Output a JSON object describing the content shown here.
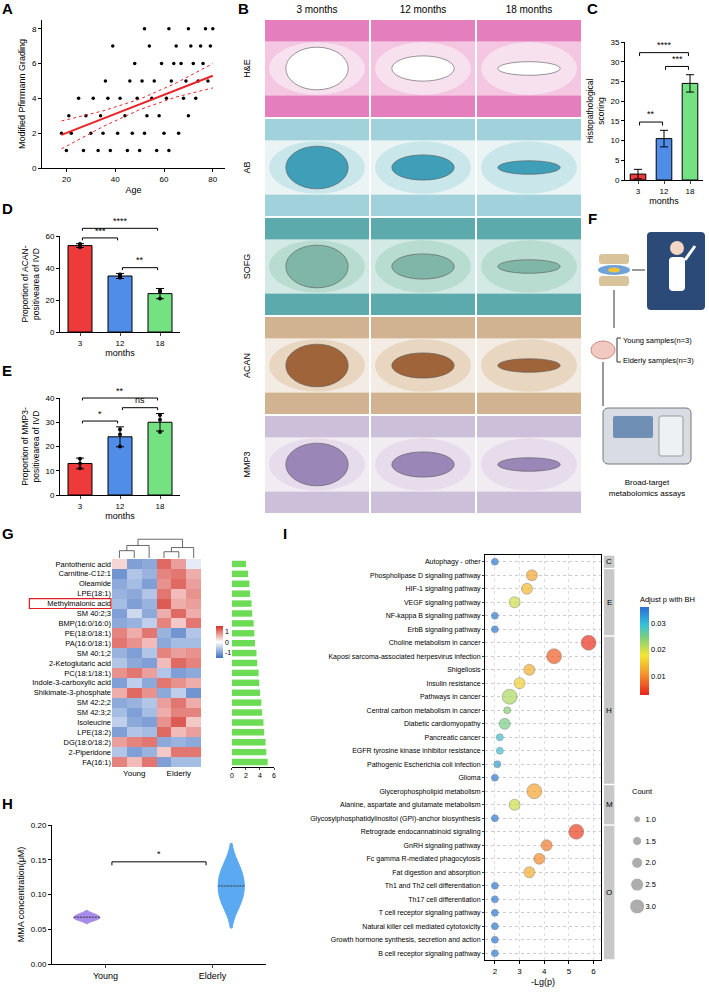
{
  "chart_data": [
    {
      "panel": "A",
      "type": "scatter",
      "x_label": "Age",
      "y_label": "Modified Pfirrmann Grading",
      "xlim": [
        10,
        85
      ],
      "xticks": [
        20,
        40,
        60,
        80
      ],
      "ylim": [
        0,
        8.5
      ],
      "yticks": [
        0,
        2,
        4,
        6,
        8
      ],
      "grid": false,
      "series": [
        {
          "type": "scatter",
          "marker": "circle",
          "color": "#000000",
          "x": [
            20,
            27,
            33,
            38,
            45,
            50,
            57,
            62,
            18,
            22,
            30,
            35,
            41,
            47,
            52,
            60,
            66,
            21,
            28,
            34,
            44,
            53,
            58,
            70,
            25,
            31,
            37,
            42,
            49,
            55,
            61,
            68,
            73,
            36,
            46,
            51,
            56,
            63,
            69,
            74,
            78,
            48,
            59,
            64,
            67,
            72,
            76,
            39,
            54,
            65,
            71,
            75,
            79,
            52,
            62,
            70,
            77,
            80
          ],
          "values": [
            1,
            1,
            1,
            1,
            1,
            1,
            1,
            1,
            2,
            2,
            2,
            2,
            2,
            2,
            2,
            2,
            2,
            3,
            3,
            3,
            3,
            3,
            3,
            3,
            4,
            4,
            4,
            4,
            4,
            4,
            4,
            4,
            4,
            5,
            5,
            5,
            5,
            5,
            5,
            5,
            5,
            6,
            6,
            6,
            6,
            6,
            6,
            7,
            7,
            7,
            7,
            7,
            7,
            8,
            8,
            8,
            8,
            8
          ]
        },
        {
          "type": "line",
          "line_style": "solid",
          "color": "#e8262a",
          "x": [
            18,
            80
          ],
          "values": [
            1.9,
            5.3
          ]
        },
        {
          "type": "line",
          "line_style": "dotted",
          "color": "#e8262a",
          "x": [
            18,
            35,
            50,
            65,
            80
          ],
          "values": [
            2.7,
            3.28,
            3.95,
            4.88,
            6.0
          ]
        },
        {
          "type": "line",
          "line_style": "dotted",
          "color": "#e8262a",
          "x": [
            18,
            35,
            50,
            65,
            80
          ],
          "values": [
            1.1,
            2.38,
            3.35,
            4.08,
            4.6
          ]
        }
      ]
    },
    {
      "panel": "C",
      "type": "bar",
      "categories": [
        "3",
        "12",
        "18"
      ],
      "values": [
        1.5,
        10.5,
        24.5
      ],
      "errors": [
        1.2,
        2.1,
        2.2
      ],
      "colors": [
        "#ee3a3a",
        "#4f8de8",
        "#74e283"
      ],
      "x_label": "months",
      "y_label": "Histopathological scoring",
      "ylim": [
        0,
        35
      ],
      "yticks": [
        0,
        5,
        10,
        15,
        20,
        25,
        30,
        35
      ],
      "significance": [
        {
          "groups": [
            "3",
            "12"
          ],
          "label": "**"
        },
        {
          "groups": [
            "12",
            "18"
          ],
          "label": "***"
        },
        {
          "groups": [
            "3",
            "18"
          ],
          "label": "****"
        }
      ]
    },
    {
      "panel": "D",
      "type": "bar",
      "categories": [
        "3",
        "12",
        "18"
      ],
      "values": [
        54,
        35,
        24
      ],
      "errors": [
        1.2,
        1.6,
        3.2
      ],
      "points": [
        [
          53,
          55,
          54.2
        ],
        [
          34,
          36,
          35.5
        ],
        [
          21,
          26,
          25
        ]
      ],
      "colors": [
        "#ee3a3a",
        "#4f8de8",
        "#74e283"
      ],
      "x_label": "months",
      "y_label": "Proportion of ACAN-positivearea of IVD",
      "ylim": [
        0,
        60
      ],
      "yticks": [
        0,
        20,
        40,
        60
      ],
      "significance": [
        {
          "groups": [
            "3",
            "12"
          ],
          "label": "***"
        },
        {
          "groups": [
            "12",
            "18"
          ],
          "label": "**"
        },
        {
          "groups": [
            "3",
            "18"
          ],
          "label": "****"
        }
      ]
    },
    {
      "panel": "E",
      "type": "bar",
      "categories": [
        "3",
        "12",
        "18"
      ],
      "values": [
        13,
        24,
        30
      ],
      "errors": [
        2.2,
        4.1,
        3.6
      ],
      "points": [
        [
          11,
          13,
          15
        ],
        [
          20,
          27,
          25
        ],
        [
          26,
          33,
          31
        ]
      ],
      "colors": [
        "#ee3a3a",
        "#4f8de8",
        "#74e283"
      ],
      "x_label": "months",
      "y_label": "Proportion of MMP3-positivearea of IVD",
      "ylim": [
        0,
        40
      ],
      "yticks": [
        0,
        10,
        20,
        30,
        40
      ],
      "significance": [
        {
          "groups": [
            "3",
            "12"
          ],
          "label": "*"
        },
        {
          "groups": [
            "12",
            "18"
          ],
          "label": "ns"
        },
        {
          "groups": [
            "3",
            "18"
          ],
          "label": "**"
        }
      ]
    },
    {
      "panel": "G",
      "type": "heatmap",
      "rows": [
        "Pantothenic acid",
        "Carnitine-C12:1",
        "Oleamide",
        "LPE(18:1)",
        "Methylmalonic acid",
        "SM 40:2;3",
        "BMP(16:0/16:0)",
        "PE(18:0/18:1)",
        "PA(16:0/18:1)",
        "SM 40:1;2",
        "2-Ketoglutaric acid",
        "PC(18:1/18:1)",
        "Indole-3-carboxylic acid",
        "Shikimate-3-phosphate",
        "SM 42:2;2",
        "SM 42:3;2",
        "Isoleucine",
        "LPE(18:2)",
        "DG(18:0/18:2)",
        "2-Piperidone",
        "FA(16:1)"
      ],
      "categories": [
        null,
        "Young",
        null,
        null,
        "Elderly",
        null
      ],
      "cells": [
        [
          0.3,
          -1.0,
          -0.9,
          1.1,
          0.7,
          -0.2
        ],
        [
          -1.1,
          -0.6,
          -0.8,
          0.9,
          1.0,
          0.6
        ],
        [
          -0.9,
          -0.7,
          -1.0,
          0.8,
          1.1,
          0.7
        ],
        [
          -0.8,
          -0.9,
          -0.6,
          1.0,
          0.5,
          0.8
        ],
        [
          -0.7,
          -1.0,
          -0.8,
          1.2,
          0.6,
          0.7
        ],
        [
          -1.0,
          -0.4,
          -0.9,
          0.6,
          1.1,
          0.6
        ],
        [
          -0.9,
          -0.8,
          -0.5,
          0.9,
          0.4,
          1.0
        ],
        [
          0.9,
          0.6,
          1.0,
          -0.8,
          -1.1,
          -0.6
        ],
        [
          1.0,
          0.8,
          0.5,
          -0.9,
          -0.7,
          -0.7
        ],
        [
          -0.8,
          -1.0,
          -0.6,
          0.9,
          0.7,
          0.8
        ],
        [
          -0.6,
          -0.9,
          -1.0,
          0.5,
          1.1,
          0.9
        ],
        [
          0.8,
          1.0,
          0.7,
          -0.6,
          -1.0,
          -0.9
        ],
        [
          -1.0,
          -0.5,
          -0.9,
          1.0,
          0.8,
          0.6
        ],
        [
          0.6,
          1.1,
          0.8,
          -0.9,
          -0.5,
          -1.1
        ],
        [
          -0.9,
          -0.8,
          -0.6,
          0.7,
          1.0,
          0.6
        ],
        [
          -0.7,
          -1.0,
          -0.7,
          0.6,
          0.9,
          0.9
        ],
        [
          -0.5,
          -0.9,
          -1.0,
          0.8,
          1.2,
          0.4
        ],
        [
          -1.0,
          -0.6,
          -0.7,
          1.1,
          0.5,
          0.7
        ],
        [
          0.7,
          0.9,
          1.0,
          -0.9,
          -0.8,
          -0.9
        ],
        [
          -0.6,
          -1.0,
          -0.8,
          0.4,
          1.0,
          1.0
        ],
        [
          0.9,
          0.5,
          1.0,
          -1.0,
          -0.7,
          -0.7
        ]
      ],
      "color_range": [
        -1.5,
        1.5
      ],
      "color_ticks": [
        1,
        0,
        -1
      ],
      "highlight": "Methylmalonic acid",
      "bars": {
        "values": [
          2.0,
          2.3,
          2.5,
          2.6,
          2.8,
          2.9,
          3.1,
          3.2,
          3.3,
          3.5,
          3.6,
          3.8,
          3.9,
          4.0,
          4.2,
          4.3,
          4.5,
          4.6,
          4.8,
          4.9,
          5.1
        ],
        "color": "#6cdc55",
        "xlim": [
          0,
          6
        ],
        "xticks": [
          0,
          2,
          4,
          6
        ]
      }
    },
    {
      "panel": "H",
      "type": "violin",
      "categories": [
        "Young",
        "Elderly"
      ],
      "points": [
        [
          0.064,
          0.067,
          0.071
        ],
        [
          0.09,
          0.112,
          0.135
        ]
      ],
      "colors": [
        "#9f7ee8",
        "#4aa0f0"
      ],
      "y_label": "MMA concentration(μM)",
      "ylim": [
        0,
        0.2
      ],
      "yticks": [
        {
          "value": 0,
          "label": "0.00"
        },
        {
          "value": 0.05,
          "label": "0.05"
        },
        {
          "value": 0.1,
          "label": "0.10"
        },
        {
          "value": 0.15,
          "label": "0.15"
        },
        {
          "value": 0.2,
          "label": "0.20"
        }
      ],
      "significance": [
        {
          "groups": [
            "Young",
            "Elderly"
          ],
          "label": "*"
        }
      ]
    },
    {
      "panel": "I",
      "type": "scatter",
      "grid": true,
      "x_label": "-Lg(p)",
      "xlim": [
        1.6,
        6.3
      ],
      "xticks": [
        2,
        3,
        4,
        5,
        6
      ],
      "categories": [
        "Autophagy - other",
        "Phospholipase D signaling pathway",
        "HIF-1 signaling pathway",
        "VEGF signaling pathway",
        "NF-kappa B signaling pathway",
        "ErbB signaling pathway",
        "Choline metabolism in cancer",
        "Kaposi sarcoma-associated herpesvirus infection",
        "Shigellosis",
        "Insulin resistance",
        "Pathways in cancer",
        "Central carbon metabolism in cancer",
        "Diabetic cardiomyopathy",
        "Pancreatic cancer",
        "EGFR tyrosine kinase inhibitor resistance",
        "Pathogenic Escherichia coli infection",
        "Glioma",
        "Glycerophospholipid metabolism",
        "Alanine, aspartate and glutamate metabolism",
        "Glycosylphosphatidylinositol (GPI)-anchor biosynthesis",
        "Retrograde endocannabinoid signaling",
        "GnRH signaling pathway",
        "Fc gamma R-mediated phagocytosis",
        "Fat digestion and absorption",
        "Th1 and Th2 cell differentiation",
        "Th17 cell differentiation",
        "T cell receptor signaling pathway",
        "Natural killer cell mediated cytotoxicity",
        "Growth hormone synthesis, secretion and action",
        "B cell receptor signaling pathway"
      ],
      "groups": [
        "C",
        "E",
        "E",
        "E",
        "E",
        "E",
        "H",
        "H",
        "H",
        "H",
        "H",
        "H",
        "H",
        "H",
        "H",
        "H",
        "H",
        "M",
        "M",
        "M",
        "O",
        "O",
        "O",
        "O",
        "O",
        "O",
        "O",
        "O",
        "O",
        "O"
      ],
      "values": [
        2.0,
        3.5,
        3.3,
        2.8,
        2.0,
        2.0,
        5.8,
        4.4,
        3.4,
        3.0,
        2.6,
        2.5,
        2.4,
        2.2,
        2.2,
        2.1,
        2.0,
        3.6,
        2.8,
        2.0,
        5.3,
        4.1,
        3.8,
        3.4,
        2.0,
        2.0,
        2.0,
        2.0,
        2.0,
        2.0
      ],
      "p_adjusted": [
        0.035,
        0.012,
        0.014,
        0.02,
        0.035,
        0.035,
        0.004,
        0.007,
        0.013,
        0.016,
        0.022,
        0.024,
        0.025,
        0.029,
        0.029,
        0.032,
        0.035,
        0.012,
        0.02,
        0.035,
        0.005,
        0.009,
        0.01,
        0.013,
        0.035,
        0.035,
        0.035,
        0.035,
        0.035,
        0.035
      ],
      "counts": [
        1,
        2,
        2,
        2,
        1,
        1,
        3,
        3,
        2,
        2,
        3,
        1,
        2,
        1,
        1,
        1,
        1,
        3,
        2,
        1,
        3,
        2,
        2,
        2,
        1,
        1,
        1,
        1,
        1,
        1
      ],
      "color_title": "Adjust p with BH",
      "color_range": [
        0.003,
        0.036
      ],
      "color_ticks": [
        0.01,
        0.02,
        0.03
      ],
      "size_title": "Count",
      "size_ticks": [
        {
          "value": 1,
          "label": "1.0"
        },
        {
          "value": 1.5,
          "label": "1.5"
        },
        {
          "value": 2,
          "label": "2.0"
        },
        {
          "value": 2.5,
          "label": "2.5"
        },
        {
          "value": 3,
          "label": "3.0"
        }
      ]
    }
  ],
  "panel_B": {
    "panel": "B",
    "columns": [
      "3 months",
      "12 months",
      "18 months"
    ],
    "rows": [
      "H&E",
      "AB",
      "SOFG",
      "ACAN",
      "MMP3"
    ]
  },
  "panel_F": {
    "panel": "F",
    "groups": [
      "Young samples(n=3)",
      "Elderly samples(n=3)"
    ],
    "assay": "Broad-target metabolomics assays"
  }
}
